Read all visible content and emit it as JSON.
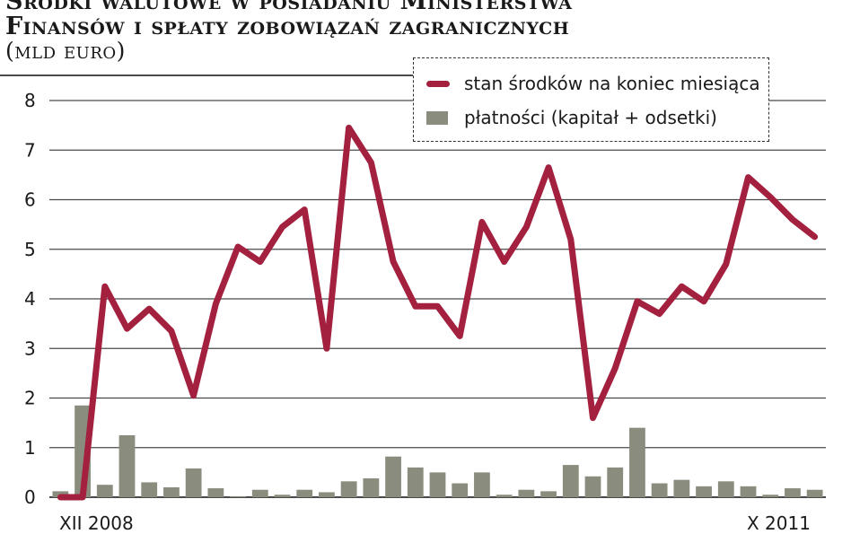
{
  "title_lines": [
    "Środki walutowe w posiadaniu Ministerstwa",
    "Finansów i spłaty zobowiązań zagranicznych",
    "(mld euro)"
  ],
  "colors": {
    "line": "#a3203f",
    "bars": "#8a8d7e",
    "grid": "#4a4a4a"
  },
  "legend": {
    "line_label": "stan środków na koniec miesiąca",
    "bar_label": "płatności (kapitał + odsetki)"
  },
  "x_start_label": "XII 2008",
  "x_end_label": "X 2011",
  "chart_data": {
    "type": "bar+line",
    "x_range": [
      "XII 2008",
      "X 2011"
    ],
    "ylim": [
      0,
      8
    ],
    "yticks": [
      0,
      1,
      2,
      3,
      4,
      5,
      6,
      7,
      8
    ],
    "grid": "horizontal",
    "legend_position": "top-right",
    "series": [
      {
        "name": "stan środków na koniec miesiąca",
        "type": "line",
        "values": [
          0,
          0,
          4.25,
          3.4,
          3.8,
          3.35,
          2.05,
          3.9,
          5.05,
          4.75,
          5.45,
          5.8,
          3.0,
          7.45,
          6.75,
          4.75,
          3.85,
          3.85,
          3.25,
          5.55,
          4.75,
          5.45,
          6.65,
          5.2,
          1.6,
          2.6,
          3.95,
          3.7,
          4.25,
          3.95,
          4.7,
          6.45,
          6.05,
          5.6,
          5.25
        ]
      },
      {
        "name": "płatności (kapitał + odsetki)",
        "type": "bar",
        "values": [
          0.12,
          1.85,
          0.25,
          1.25,
          0.3,
          0.2,
          0.58,
          0.18,
          0.02,
          0.15,
          0.05,
          0.15,
          0.1,
          0.32,
          0.38,
          0.82,
          0.6,
          0.5,
          0.28,
          0.5,
          0.05,
          0.15,
          0.12,
          0.65,
          0.42,
          0.6,
          1.4,
          0.28,
          0.35,
          0.22,
          0.32,
          0.22,
          0.05,
          0.18,
          0.15
        ]
      }
    ]
  }
}
